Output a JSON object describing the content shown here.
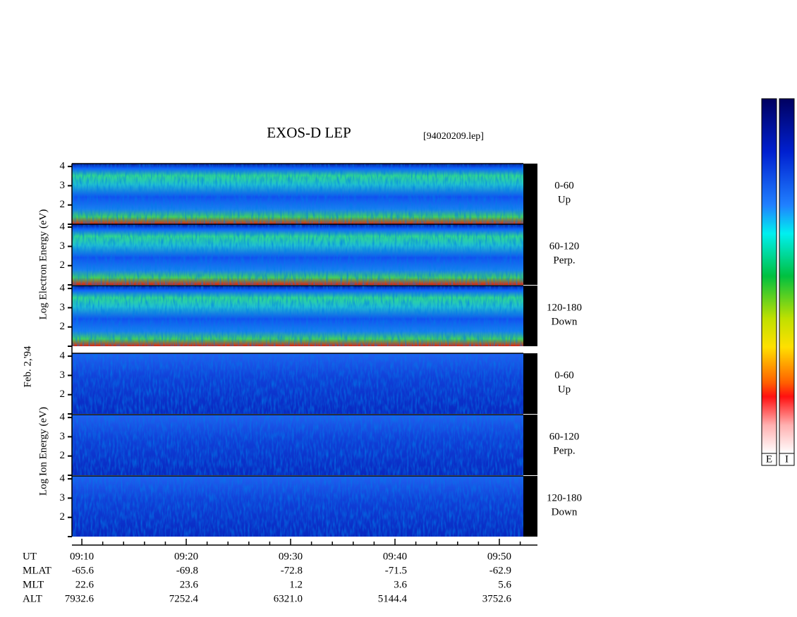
{
  "title": "EXOS-D LEP",
  "file_label": "[94020209.lep]",
  "date_label": "Feb. 2,'94",
  "energy_axis": {
    "ylim": [
      1,
      4.15
    ],
    "yticks": [
      2,
      3,
      4
    ]
  },
  "species": [
    {
      "name": "electron",
      "axis_label": "Log  Electron  Energy (eV)"
    },
    {
      "name": "ion",
      "axis_label": "Log  Ion  Energy (eV)"
    }
  ],
  "panels": [
    {
      "species": 0,
      "range": "0-60",
      "direction": "Up"
    },
    {
      "species": 0,
      "range": "60-120",
      "direction": "Perp."
    },
    {
      "species": 0,
      "range": "120-180",
      "direction": "Down"
    },
    {
      "species": 1,
      "range": "0-60",
      "direction": "Up"
    },
    {
      "species": 1,
      "range": "60-120",
      "direction": "Perp."
    },
    {
      "species": 1,
      "range": "120-180",
      "direction": "Down"
    }
  ],
  "time_axis": {
    "xlim": [
      9.05,
      53.65
    ],
    "ticks": [
      {
        "value": 10,
        "label": "09:10"
      },
      {
        "value": 20,
        "label": "09:20"
      },
      {
        "value": 30,
        "label": "09:30"
      },
      {
        "value": 40,
        "label": "09:40"
      },
      {
        "value": 50,
        "label": "09:50"
      }
    ],
    "minor_ticks": [
      12,
      14,
      16,
      18,
      22,
      24,
      26,
      28,
      32,
      34,
      36,
      38,
      42,
      44,
      46,
      48,
      52
    ]
  },
  "ephemeris": {
    "row_labels": [
      "UT",
      "MLAT",
      "MLT",
      "ALT"
    ],
    "rows": [
      [
        "-65.6",
        "-69.8",
        "-72.8",
        "-71.5",
        "-62.9"
      ],
      [
        "22.6",
        "23.6",
        "1.2",
        "3.6",
        "5.6"
      ],
      [
        "7932.6",
        "7252.4",
        "6321.0",
        "5144.4",
        "3752.6"
      ]
    ]
  },
  "colorbars": [
    "E",
    "I"
  ]
}
